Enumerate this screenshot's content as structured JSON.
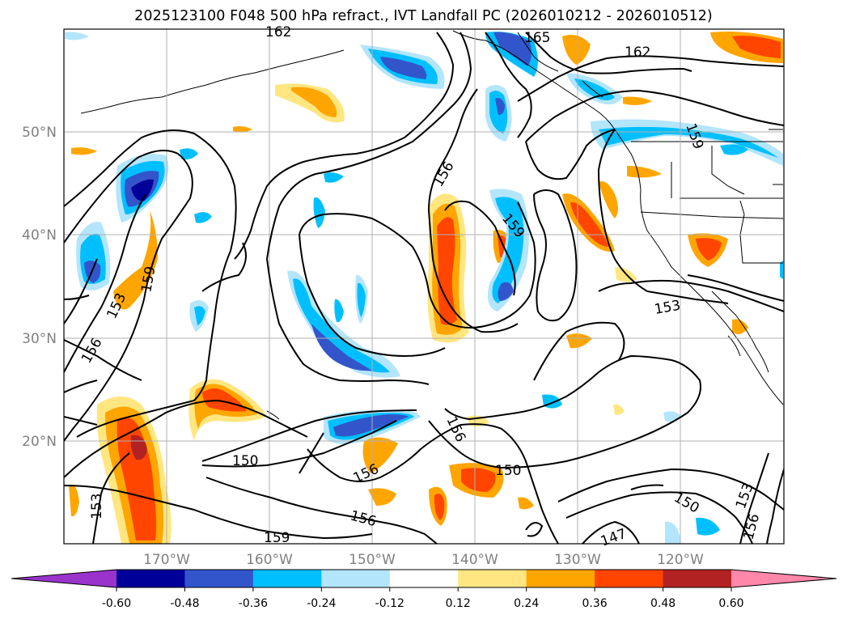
{
  "title": "2025123100 F048 500 hPa refract., IVT Landfall PC (2026010212 - 2026010512)",
  "lat_labels": [
    "50°N",
    "40°N",
    "30°N",
    "20°N"
  ],
  "lon_labels": [
    "170°W",
    "160°W",
    "150°W",
    "140°W",
    "130°W",
    "120°W"
  ],
  "contour_labels": [
    "162",
    "165",
    "162",
    "159",
    "156",
    "159",
    "159",
    "153",
    "156",
    "153",
    "156",
    "150",
    "150",
    "156",
    "150",
    "156",
    "159",
    "153",
    "156",
    "153",
    "147"
  ],
  "colorbar": {
    "ticks": [
      "-0.60",
      "-0.48",
      "-0.36",
      "-0.24",
      "-0.12",
      "0.12",
      "0.24",
      "0.36",
      "0.48",
      "0.60"
    ],
    "colors": [
      "#9933cc",
      "#000099",
      "#3355cc",
      "#00bfff",
      "#b3e5fc",
      "#ffffff",
      "#ffe680",
      "#ffa500",
      "#ff4500",
      "#b22222",
      "#ff88aa"
    ]
  },
  "colors": {
    "contour": "#000000",
    "grid": "#b0b0b0",
    "coast": "#000000",
    "lat_lon_labels": "#808080"
  }
}
